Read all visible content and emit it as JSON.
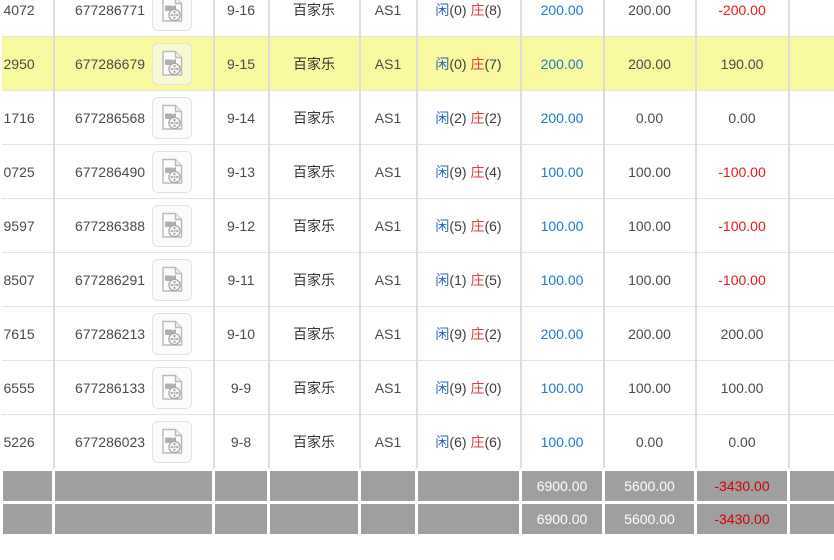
{
  "labels": {
    "player": "闲",
    "banker": "庄"
  },
  "colors": {
    "highlight_yellow": "#f9f9a2",
    "summary_gray": "#9f9f9f",
    "link_blue": "#1e78d2",
    "player_blue": "#2566c8",
    "banker_red": "#e03b3b",
    "negative_red": "#ee1616",
    "summary_negative_red": "#d40000",
    "grid_line": "#dcdcdc"
  },
  "icons": {
    "video": "video-file-icon"
  },
  "table": {
    "rows": [
      {
        "ref": "4072",
        "order_id": "677286771",
        "date": "9-16",
        "game": "百家乐",
        "table_code": "AS1",
        "player_count": "0",
        "banker_count": "8",
        "bet": "200.00",
        "valid": "200.00",
        "win_loss": "-200.00",
        "highlighted": false
      },
      {
        "ref": "2950",
        "order_id": "677286679",
        "date": "9-15",
        "game": "百家乐",
        "table_code": "AS1",
        "player_count": "0",
        "banker_count": "7",
        "bet": "200.00",
        "valid": "200.00",
        "win_loss": "190.00",
        "highlighted": true
      },
      {
        "ref": "1716",
        "order_id": "677286568",
        "date": "9-14",
        "game": "百家乐",
        "table_code": "AS1",
        "player_count": "2",
        "banker_count": "2",
        "bet": "200.00",
        "valid": "0.00",
        "win_loss": "0.00",
        "highlighted": false
      },
      {
        "ref": "0725",
        "order_id": "677286490",
        "date": "9-13",
        "game": "百家乐",
        "table_code": "AS1",
        "player_count": "9",
        "banker_count": "4",
        "bet": "100.00",
        "valid": "100.00",
        "win_loss": "-100.00",
        "highlighted": false
      },
      {
        "ref": "9597",
        "order_id": "677286388",
        "date": "9-12",
        "game": "百家乐",
        "table_code": "AS1",
        "player_count": "5",
        "banker_count": "6",
        "bet": "100.00",
        "valid": "100.00",
        "win_loss": "-100.00",
        "highlighted": false
      },
      {
        "ref": "8507",
        "order_id": "677286291",
        "date": "9-11",
        "game": "百家乐",
        "table_code": "AS1",
        "player_count": "1",
        "banker_count": "5",
        "bet": "100.00",
        "valid": "100.00",
        "win_loss": "-100.00",
        "highlighted": false
      },
      {
        "ref": "7615",
        "order_id": "677286213",
        "date": "9-10",
        "game": "百家乐",
        "table_code": "AS1",
        "player_count": "9",
        "banker_count": "2",
        "bet": "200.00",
        "valid": "200.00",
        "win_loss": "200.00",
        "highlighted": false
      },
      {
        "ref": "6555",
        "order_id": "677286133",
        "date": "9-9",
        "game": "百家乐",
        "table_code": "AS1",
        "player_count": "9",
        "banker_count": "0",
        "bet": "100.00",
        "valid": "100.00",
        "win_loss": "100.00",
        "highlighted": false
      },
      {
        "ref": "5226",
        "order_id": "677286023",
        "date": "9-8",
        "game": "百家乐",
        "table_code": "AS1",
        "player_count": "6",
        "banker_count": "6",
        "bet": "100.00",
        "valid": "0.00",
        "win_loss": "0.00",
        "highlighted": false
      }
    ],
    "summary_rows": [
      {
        "bet_total": "6900.00",
        "valid_total": "5600.00",
        "win_loss_total": "-3430.00"
      },
      {
        "bet_total": "6900.00",
        "valid_total": "5600.00",
        "win_loss_total": "-3430.00"
      }
    ]
  }
}
